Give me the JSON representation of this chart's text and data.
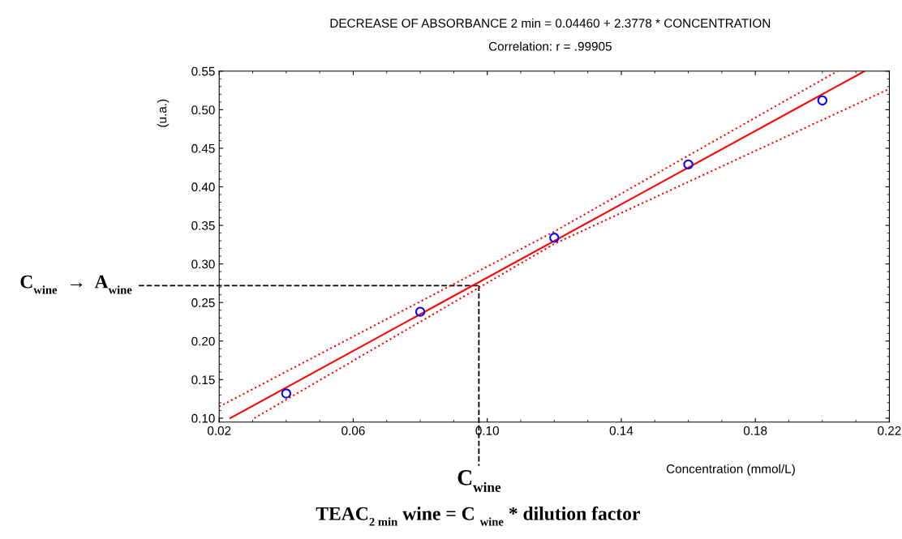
{
  "chart_data": {
    "type": "scatter",
    "title": "DECREASE OF ABSORBANCE 2 min = 0.04460 + 2.3778 * CONCENTRATION",
    "subtitle": "Correlation: r = .99905",
    "xlabel": "Concentration (mmol/L)",
    "ylabel": "(u.a.)",
    "xlim": [
      0.02,
      0.22
    ],
    "ylim": [
      0.095,
      0.55
    ],
    "xticks": [
      {
        "value": 0.02,
        "label": "0.02"
      },
      {
        "value": 0.06,
        "label": "0.06"
      },
      {
        "value": 0.1,
        "label": "0.10"
      },
      {
        "value": 0.14,
        "label": "0.14"
      },
      {
        "value": 0.18,
        "label": "0.18"
      },
      {
        "value": 0.22,
        "label": "0.22"
      }
    ],
    "yticks": [
      {
        "value": 0.1,
        "label": "0.10"
      },
      {
        "value": 0.15,
        "label": "0.15"
      },
      {
        "value": 0.2,
        "label": "0.20"
      },
      {
        "value": 0.25,
        "label": "0.25"
      },
      {
        "value": 0.3,
        "label": "0.30"
      },
      {
        "value": 0.35,
        "label": "0.35"
      },
      {
        "value": 0.4,
        "label": "0.40"
      },
      {
        "value": 0.45,
        "label": "0.45"
      },
      {
        "value": 0.5,
        "label": "0.50"
      },
      {
        "value": 0.55,
        "label": "0.55"
      }
    ],
    "series": [
      {
        "type": "scatter",
        "color": "#0000ff",
        "marker": "circle",
        "x": [
          0.04,
          0.08,
          0.12,
          0.16,
          0.2
        ],
        "values": [
          0.132,
          0.238,
          0.334,
          0.429,
          0.512
        ]
      },
      {
        "type": "line",
        "color": "#ff0000",
        "line_style": "solid",
        "marker": "none",
        "x": [
          0.0233,
          0.2126
        ],
        "values": [
          0.1,
          0.55
        ]
      },
      {
        "type": "line",
        "color": "#ff0000",
        "line_style": "dotted",
        "marker": "none",
        "x": [
          0.02,
          0.12,
          0.2045
        ],
        "values": [
          0.115,
          0.342,
          0.55
        ]
      },
      {
        "type": "line",
        "color": "#ff0000",
        "line_style": "dotted",
        "marker": "none",
        "x": [
          0.0305,
          0.12,
          0.22
        ],
        "values": [
          0.1,
          0.326,
          0.527
        ]
      }
    ],
    "ref_lines": [
      {
        "axis": "y",
        "value": 0.272,
        "label": "C$_{wine}$  →  A$_{wine}$",
        "color": "#000000",
        "line_style": "dashed"
      },
      {
        "axis": "x",
        "value": 0.0975,
        "label": "C$_{wine}$",
        "color": "#000000",
        "line_style": "dashed"
      }
    ],
    "annotations": [
      "TEAC$_{2 min}$ wine = C $_{wine}$ * dilution factor"
    ],
    "grid": false,
    "legend": false
  }
}
